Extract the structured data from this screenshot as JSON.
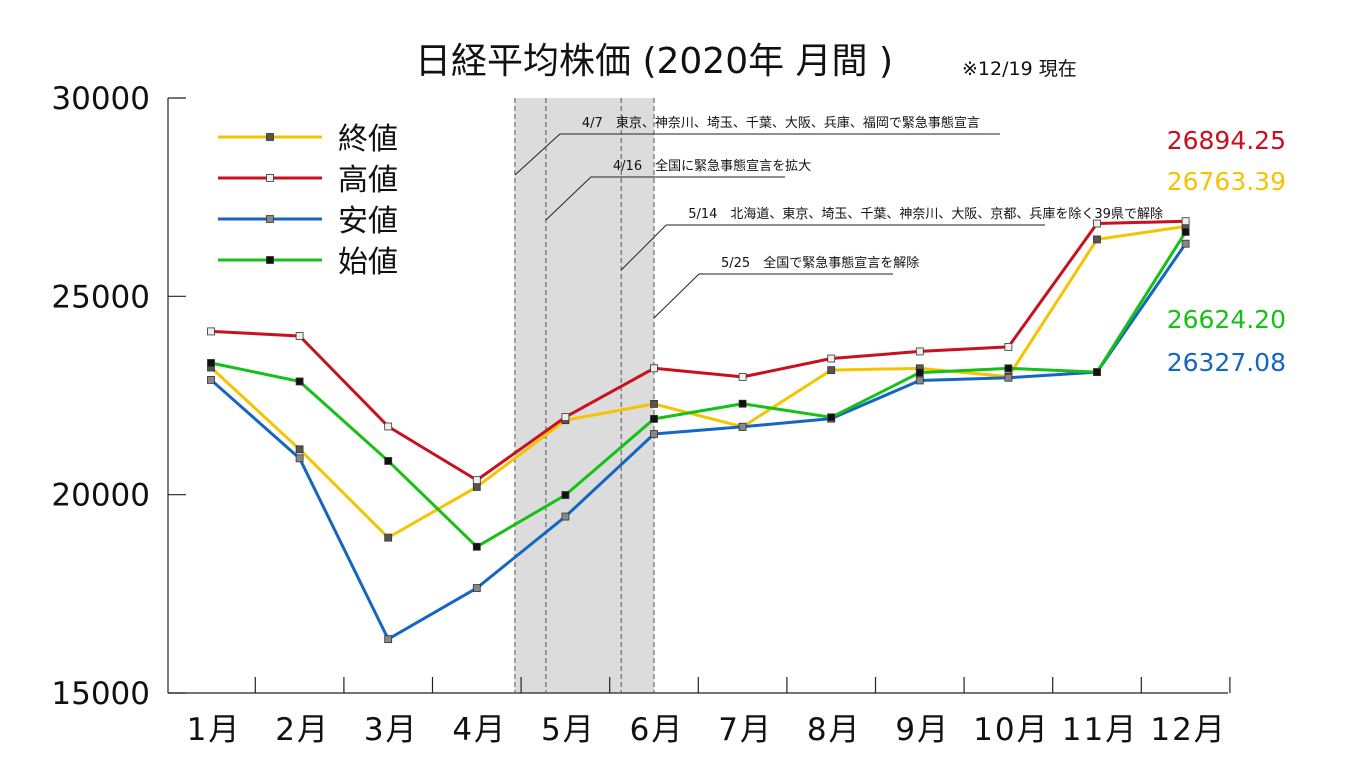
{
  "chart_data": {
    "type": "line",
    "title": "日経平均株価 (2020年 月間 )",
    "subtitle": "※12/19 現在",
    "categories": [
      "1月",
      "2月",
      "3月",
      "4月",
      "5月",
      "6月",
      "7月",
      "8月",
      "9月",
      "10月",
      "11月",
      "12月"
    ],
    "ylim": [
      15000,
      30000
    ],
    "yticks": [
      "30000",
      "25000",
      "20000",
      "15000"
    ],
    "series": [
      {
        "name": "終値",
        "color": "#f5c400",
        "marker": "#555555",
        "values": [
          23205,
          21143,
          18917,
          20194,
          21878,
          22288,
          21710,
          23140,
          23185,
          22977,
          26434,
          26763.39
        ]
      },
      {
        "name": "高値",
        "color": "#c8101e",
        "marker": "#eeeeee",
        "values": [
          24116,
          24000,
          21719,
          20366,
          21955,
          23186,
          22969,
          23432,
          23611,
          23725,
          26835,
          26894.25
        ]
      },
      {
        "name": "安値",
        "color": "#1466c0",
        "marker": "#888888",
        "values": [
          22893,
          20916,
          16358,
          17646,
          19448,
          21529,
          21711,
          21916,
          22879,
          22948,
          23089,
          26327.08
        ]
      },
      {
        "name": "始値",
        "color": "#16c016",
        "marker": "#111111",
        "values": [
          23320,
          22854,
          20850,
          18686,
          19991,
          21910,
          22293,
          21950,
          23078,
          23185,
          23090,
          26624.2
        ]
      }
    ],
    "end_labels": [
      {
        "text": "26894.25",
        "color": "#c8101e"
      },
      {
        "text": "26763.39",
        "color": "#f5c400"
      },
      {
        "text": "26624.20",
        "color": "#16c016"
      },
      {
        "text": "26327.08",
        "color": "#1466c0"
      }
    ],
    "events": [
      {
        "text": "4/7　東京、神奈川、埼玉、千葉、大阪、兵庫、福岡で緊急事態宣言",
        "month": 3.43
      },
      {
        "text": "4/16　全国に緊急事態宣言を拡大",
        "month": 3.78
      },
      {
        "text": "5/14　北海道、東京、埼玉、千葉、神奈川、大阪、京都、兵庫を除く39県で解除",
        "month": 4.63
      },
      {
        "text": "5/25　全国で緊急事態宣言を解除",
        "month": 5.0
      }
    ],
    "shaded_period": {
      "from_month": 3.43,
      "to_month": 5.0,
      "color": "#dcdcdc"
    }
  }
}
